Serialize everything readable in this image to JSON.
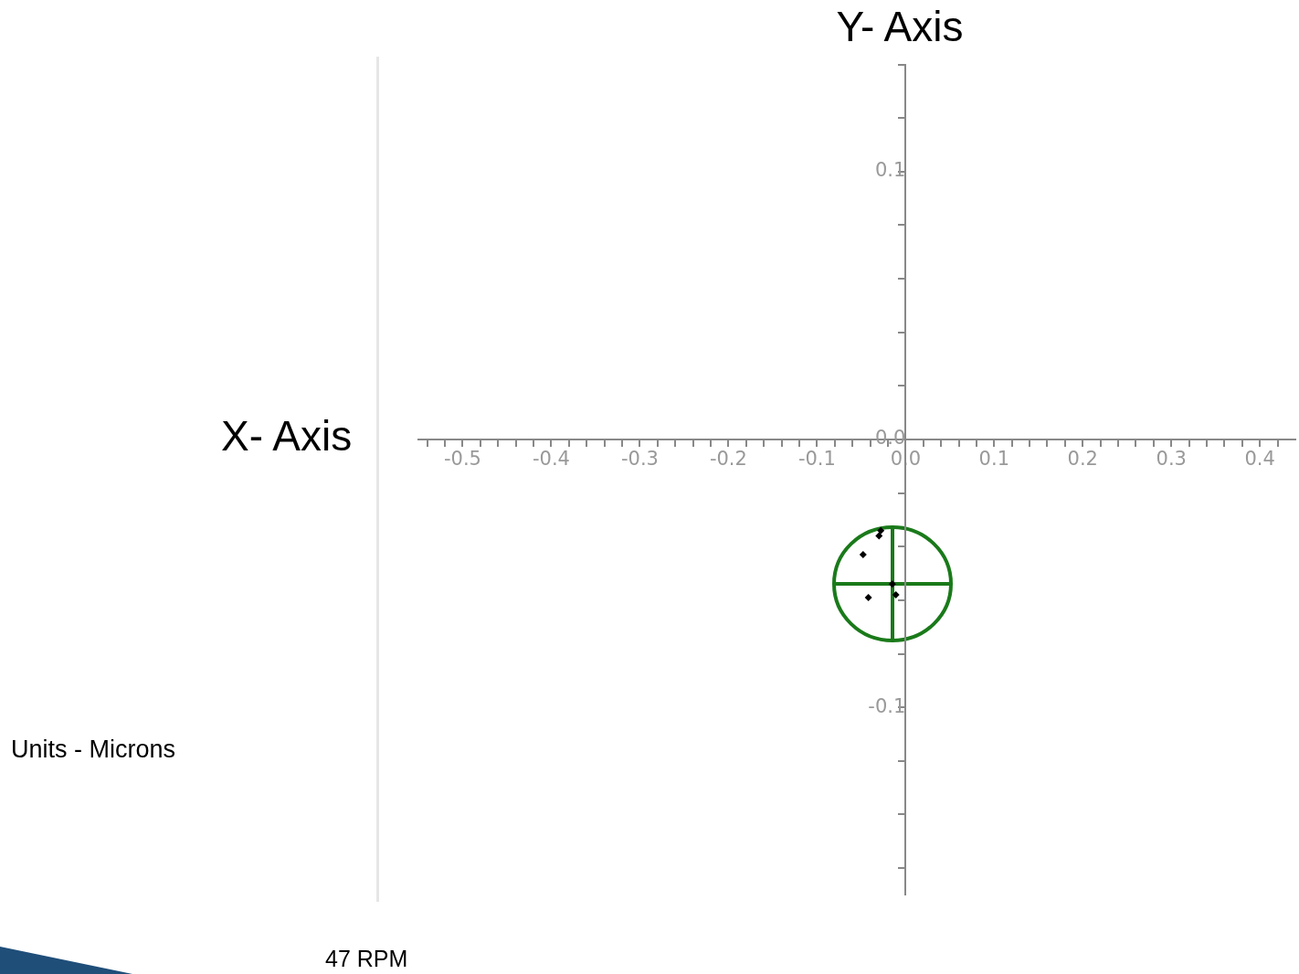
{
  "chart_data": {
    "type": "scatter",
    "xlabel": "X- Axis",
    "ylabel": "Y- Axis",
    "annotations": [
      "Units - Microns",
      "47 RPM"
    ],
    "xlim": [
      -0.55,
      0.44
    ],
    "xticks": [
      {
        "value": -0.54,
        "label": null
      },
      {
        "value": -0.52,
        "label": null
      },
      -0.5,
      {
        "value": -0.48,
        "label": null
      },
      {
        "value": -0.46,
        "label": null
      },
      {
        "value": -0.44,
        "label": null
      },
      {
        "value": -0.42,
        "label": null
      },
      -0.4,
      {
        "value": -0.38,
        "label": null
      },
      {
        "value": -0.36,
        "label": null
      },
      {
        "value": -0.34,
        "label": null
      },
      {
        "value": -0.32,
        "label": null
      },
      -0.3,
      {
        "value": -0.28,
        "label": null
      },
      {
        "value": -0.26,
        "label": null
      },
      {
        "value": -0.24,
        "label": null
      },
      {
        "value": -0.22,
        "label": null
      },
      -0.2,
      {
        "value": -0.18,
        "label": null
      },
      {
        "value": -0.16,
        "label": null
      },
      {
        "value": -0.14,
        "label": null
      },
      {
        "value": -0.12,
        "label": null
      },
      -0.1,
      {
        "value": -0.08,
        "label": null
      },
      {
        "value": -0.06,
        "label": null
      },
      {
        "value": -0.04,
        "label": null
      },
      {
        "value": -0.02,
        "label": null
      },
      {
        "value": 0,
        "label": "0.0"
      },
      {
        "value": 0.02,
        "label": null
      },
      {
        "value": 0.04,
        "label": null
      },
      {
        "value": 0.06,
        "label": null
      },
      {
        "value": 0.08,
        "label": null
      },
      0.1,
      {
        "value": 0.12,
        "label": null
      },
      {
        "value": 0.14,
        "label": null
      },
      {
        "value": 0.16,
        "label": null
      },
      {
        "value": 0.18,
        "label": null
      },
      0.2,
      {
        "value": 0.22,
        "label": null
      },
      {
        "value": 0.24,
        "label": null
      },
      {
        "value": 0.26,
        "label": null
      },
      {
        "value": 0.28,
        "label": null
      },
      0.3,
      {
        "value": 0.32,
        "label": null
      },
      {
        "value": 0.34,
        "label": null
      },
      {
        "value": 0.36,
        "label": null
      },
      {
        "value": 0.38,
        "label": null
      },
      0.4,
      {
        "value": 0.42,
        "label": null
      }
    ],
    "ylim": [
      -0.17,
      0.14
    ],
    "yticks": [
      {
        "value": -0.16,
        "label": null
      },
      {
        "value": -0.14,
        "label": null
      },
      {
        "value": -0.12,
        "label": null
      },
      -0.1,
      {
        "value": -0.08,
        "label": null
      },
      {
        "value": -0.06,
        "label": null
      },
      {
        "value": -0.04,
        "label": null
      },
      {
        "value": -0.02,
        "label": null
      },
      {
        "value": 0,
        "label": "0.0"
      },
      {
        "value": 0.02,
        "label": null
      },
      {
        "value": 0.04,
        "label": null
      },
      {
        "value": 0.06,
        "label": null
      },
      {
        "value": 0.08,
        "label": null
      },
      0.1,
      {
        "value": 0.12,
        "label": null
      },
      {
        "value": 0.14,
        "label": null
      }
    ],
    "series": [
      {
        "type": "scatter",
        "marker": "diamond",
        "color": "#000000",
        "x": [
          -0.028,
          -0.03,
          -0.048,
          -0.042,
          -0.015,
          -0.011
        ],
        "values": [
          -0.034,
          -0.036,
          -0.043,
          -0.059,
          -0.054,
          -0.058
        ]
      }
    ]
  }
}
